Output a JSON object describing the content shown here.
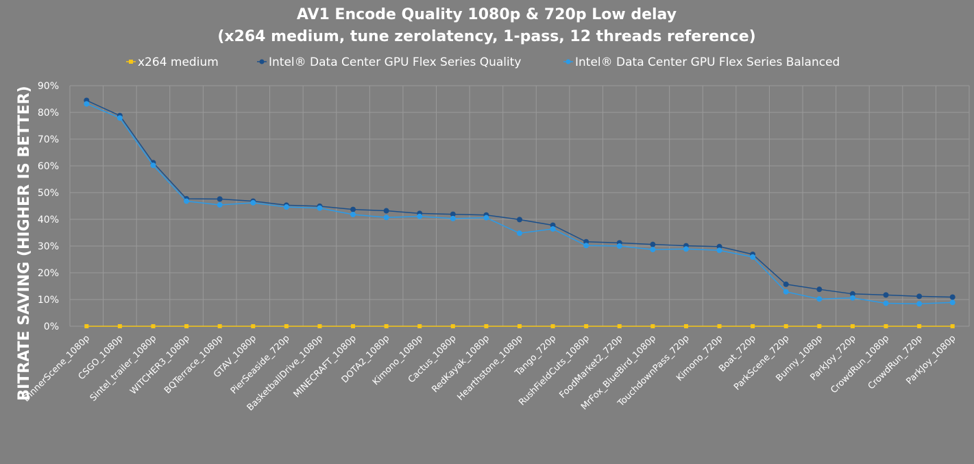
{
  "chart_data": {
    "type": "line",
    "title": [
      "AV1 Encode Quality 1080p & 720p Low delay",
      "(x264 medium, tune zerolatency, 1-pass, 12 threads reference)"
    ],
    "xlabel": "",
    "ylabel": "BITRATE SAVING (HIGHER IS BETTER)",
    "ylim": [
      0,
      90
    ],
    "yticks": [
      "0%",
      "10%",
      "20%",
      "30%",
      "40%",
      "50%",
      "60%",
      "70%",
      "80%",
      "90%"
    ],
    "grid": true,
    "legend_position": "top",
    "categories": [
      "DinnerScene_1080p",
      "CSGO_1080p",
      "Sintel_trailer_1080p",
      "WITCHER3_1080p",
      "BQTerrace_1080p",
      "GTAV_1080p",
      "PierSeaside_720p",
      "BasketballDrive_1080p",
      "MINECRAFT_1080p",
      "DOTA2_1080p",
      "Kimono_1080p",
      "Cactus_1080p",
      "RedKayak_1080p",
      "Hearthstone_1080p",
      "Tango_720p",
      "RushFieldCuts_1080p",
      "FoodMarket2_720p",
      "MrFox_BlueBird_1080p",
      "TouchdownPass_720p",
      "Kimono_720p",
      "Boat_720p",
      "ParkScene_720p",
      "Bunny_1080p",
      "ParkJoy_720p",
      "CrowdRun_1080p",
      "CrowdRun_720p",
      "ParkJoy_1080p"
    ],
    "series": [
      {
        "name": "x264 medium",
        "color": "#f5c518",
        "marker": "square",
        "values": [
          0,
          0,
          0,
          0,
          0,
          0,
          0,
          0,
          0,
          0,
          0,
          0,
          0,
          0,
          0,
          0,
          0,
          0,
          0,
          0,
          0,
          0,
          0,
          0,
          0,
          0,
          0
        ]
      },
      {
        "name": "Intel® Data Center GPU Flex Series Quality",
        "color": "#1b4f8a",
        "marker": "circle",
        "values": [
          84.5,
          78.8,
          61.2,
          47.7,
          47.6,
          46.8,
          45.3,
          44.9,
          43.7,
          43.2,
          42.2,
          41.9,
          41.6,
          39.9,
          37.8,
          31.6,
          31.2,
          30.6,
          30.1,
          29.8,
          26.9,
          15.7,
          13.8,
          12.1,
          11.7,
          11.2,
          10.9
        ]
      },
      {
        "name": "Intel® Data Center GPU Flex Series Balanced",
        "color": "#2b9be8",
        "marker": "circle",
        "values": [
          83.2,
          77.9,
          60.2,
          46.8,
          45.4,
          46.2,
          44.6,
          44.2,
          41.8,
          40.7,
          41.1,
          40.3,
          40.6,
          34.8,
          36.4,
          30.2,
          30.0,
          28.7,
          28.9,
          28.4,
          25.9,
          12.9,
          10.2,
          10.6,
          8.6,
          8.4,
          8.9
        ]
      }
    ]
  }
}
